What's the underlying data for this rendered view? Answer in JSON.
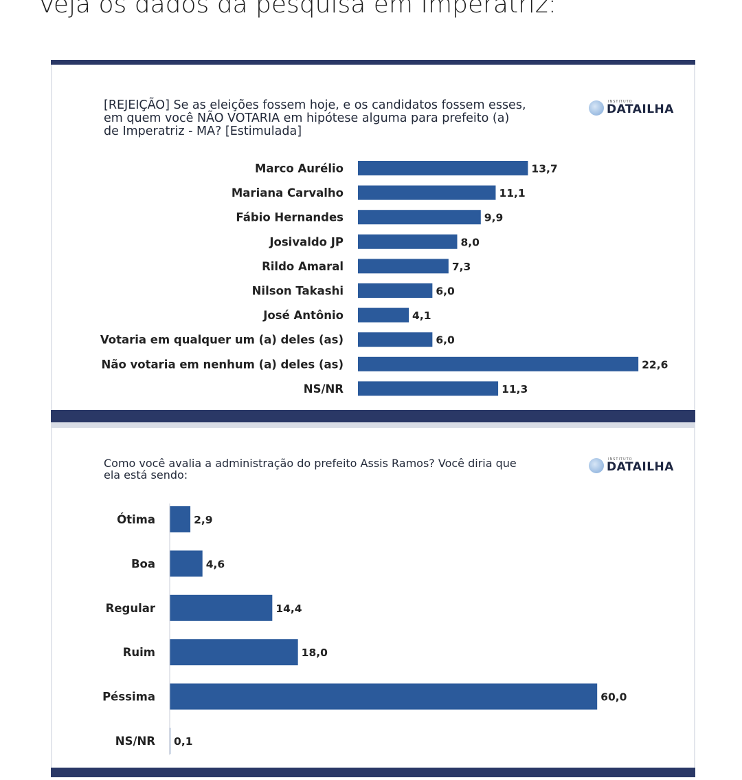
{
  "header": {
    "text": "Veja os dados da pesquisa em Imperatriz:"
  },
  "logo": {
    "small": "INSTITUTO",
    "name": "DATAILHA"
  },
  "chart_data": [
    {
      "type": "bar",
      "orientation": "horizontal",
      "title": "[REJEIÇÃO] Se as eleições fossem hoje, e os candidatos fossem esses, em quem você NÃO VOTARIA em hipótese alguma para prefeito (a) de Imperatriz - MA? [Estimulada]",
      "title_lines": [
        "[REJEIÇÃO] Se as eleições fossem hoje, e os candidatos fossem esses,",
        "em quem você NÃO VOTARIA em hipótese alguma para prefeito (a)",
        "de Imperatriz - MA? [Estimulada]"
      ],
      "categories": [
        "Marco Aurélio",
        "Mariana Carvalho",
        "Fábio Hernandes",
        "Josivaldo JP",
        "Rildo Amaral",
        "Nilson Takashi",
        "José Antônio",
        "Votaria em qualquer um (a) deles (as)",
        "Não votaria em nenhum (a) deles (as)",
        "NS/NR"
      ],
      "values": [
        13.7,
        11.1,
        9.9,
        8.0,
        7.3,
        6.0,
        4.1,
        6.0,
        22.6,
        11.3
      ],
      "value_labels": [
        "13,7",
        "11,1",
        "9,9",
        "8,0",
        "7,3",
        "6,0",
        "4,1",
        "6,0",
        "22,6",
        "11,3"
      ],
      "bar_color": "#2b5a9b"
    },
    {
      "type": "bar",
      "orientation": "horizontal",
      "title": "Como você avalia a administração do prefeito Assis Ramos? Você diria que ela está sendo:",
      "title_lines": [
        "Como você avalia a administração do prefeito Assis Ramos? Você diria que",
        "ela está sendo:"
      ],
      "categories": [
        "Ótima",
        "Boa",
        "Regular",
        "Ruim",
        "Péssima",
        "NS/NR"
      ],
      "values": [
        2.9,
        4.6,
        14.4,
        18.0,
        60.0,
        0.1
      ],
      "value_labels": [
        "2,9",
        "4,6",
        "14,4",
        "18,0",
        "60,0",
        "0,1"
      ],
      "bar_color": "#2b5a9b"
    }
  ]
}
